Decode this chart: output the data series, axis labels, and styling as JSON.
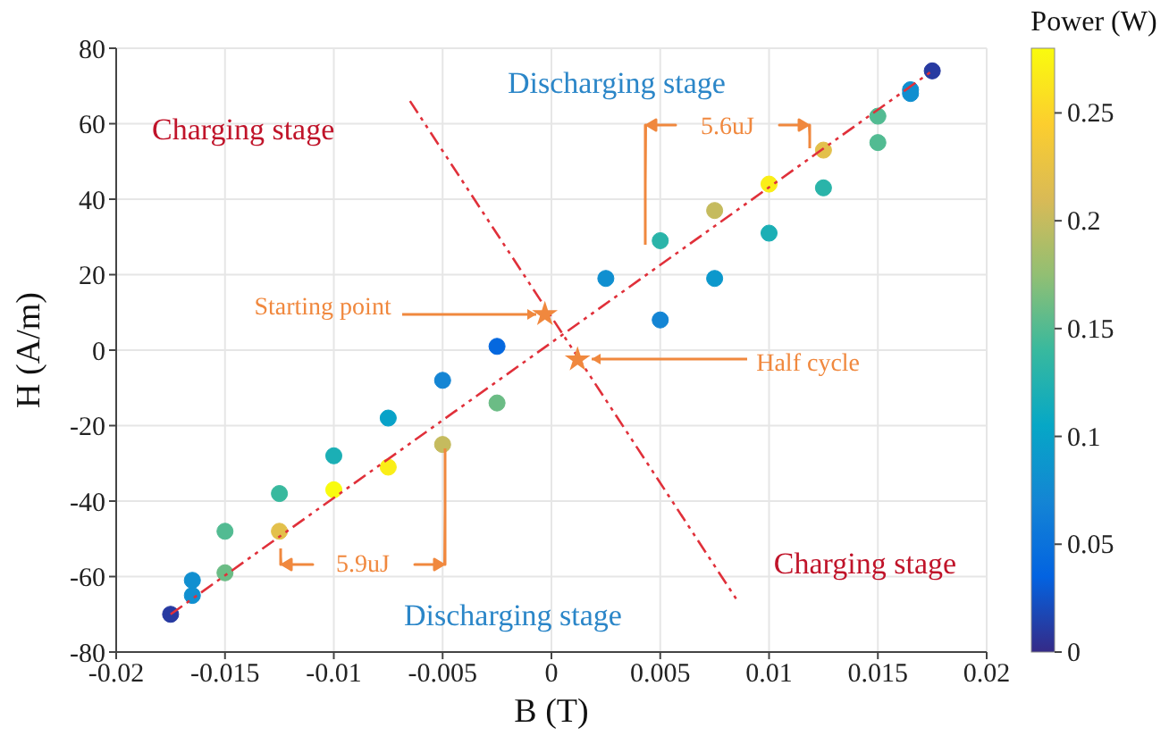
{
  "chart_data": {
    "type": "scatter",
    "xlabel": "B (T)",
    "ylabel": "H (A/m)",
    "clabel": "Power (W)",
    "xlim": [
      -0.02,
      0.02
    ],
    "xticks": [
      -0.02,
      -0.015,
      -0.01,
      -0.005,
      0,
      0.005,
      0.01,
      0.015,
      0.02
    ],
    "ylim": [
      -80,
      80
    ],
    "yticks": [
      -80,
      -60,
      -40,
      -20,
      0,
      20,
      40,
      60,
      80
    ],
    "clim": [
      0,
      0.28
    ],
    "cticks": [
      0,
      0.05,
      0.1,
      0.15,
      0.2,
      0.25
    ],
    "grid": true,
    "marker": "circle",
    "series": [
      {
        "x": [
          0.0025,
          0.005,
          0.0075,
          0.01,
          0.0125,
          0.015,
          0.0165,
          0.0175,
          0.0165,
          0.015,
          0.0125,
          0.01,
          0.0075,
          0.005,
          -0.0025,
          -0.005,
          -0.0075,
          -0.01,
          -0.0125,
          -0.015,
          -0.0165,
          -0.0175,
          -0.0165,
          -0.015,
          -0.0125,
          -0.01,
          -0.0075,
          -0.005,
          -0.0025
        ],
        "values": [
          19,
          29,
          37,
          44,
          53,
          62,
          69,
          74,
          68,
          55,
          43,
          31,
          19,
          8,
          -14,
          -25,
          -31,
          -37,
          -48,
          -59,
          -65,
          -70,
          -61,
          -48,
          -38,
          -28,
          -18,
          -8,
          1
        ],
        "cvalues": [
          0.08,
          0.13,
          0.2,
          0.27,
          0.22,
          0.15,
          0.08,
          0.01,
          0.08,
          0.15,
          0.13,
          0.12,
          0.09,
          0.07,
          0.16,
          0.2,
          0.27,
          0.28,
          0.22,
          0.16,
          0.08,
          0.01,
          0.08,
          0.15,
          0.14,
          0.12,
          0.1,
          0.07,
          0.04
        ],
        "colors": [
          "#108fd0",
          "#2ab4a9",
          "#c5bb5e",
          "#faee17",
          "#e3c04b",
          "#52bb92",
          "#108fd0",
          "#273aa1",
          "#108fd0",
          "#52bb92",
          "#2ab4a9",
          "#1bafb5",
          "#0c98cc",
          "#1485d4",
          "#6bbc85",
          "#c5bb5e",
          "#faee17",
          "#f9fb0e",
          "#e3c04b",
          "#6bbc85",
          "#108fd0",
          "#273aa1",
          "#108fd0",
          "#52bb92",
          "#38b99e",
          "#1bafb5",
          "#08a2c8",
          "#1485d4",
          "#0568df"
        ]
      },
      {
        "type": "line",
        "color": "#e0303a",
        "line_style": "dashed",
        "marker": "none",
        "x": [
          -0.0175,
          0.0175
        ],
        "values": [
          -70,
          74
        ]
      },
      {
        "type": "line",
        "color": "#e0303a",
        "line_style": "dashed",
        "marker": "none",
        "x": [
          -0.0065,
          0.0085
        ],
        "values": [
          66,
          -66
        ]
      },
      {
        "type": "scatter",
        "color": "#f0883e",
        "marker": "star",
        "x": [
          -0.0003,
          0.0012
        ],
        "values": [
          9.5,
          -2.5
        ]
      }
    ],
    "annotations": [
      "Charging stage",
      "Discharging stage",
      {
        "text": "Starting point",
        "x": -0.0003,
        "y": 9.5
      },
      {
        "text": "Half cycle",
        "x": 0.0012,
        "y": -2.5
      },
      "5.6uJ",
      "5.9uJ",
      "Discharging stage",
      "Charging stage"
    ]
  }
}
